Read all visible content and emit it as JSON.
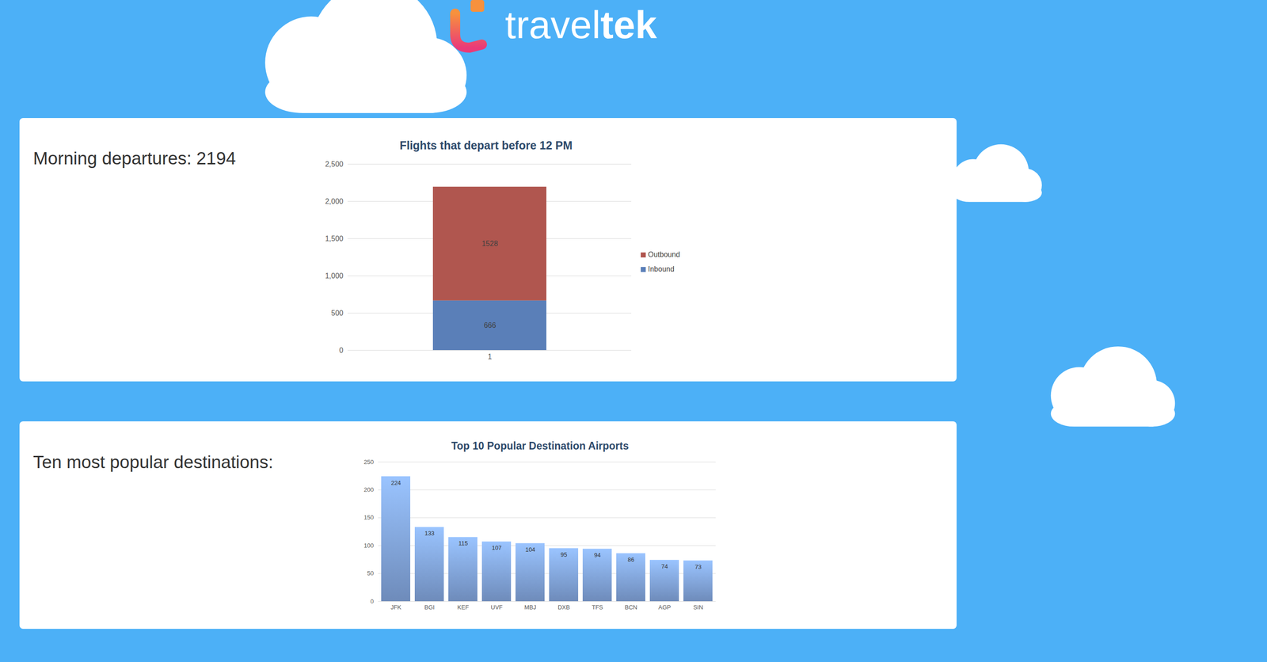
{
  "logo": {
    "text_light": "travel",
    "text_bold": "tek"
  },
  "panels": [
    {
      "label": "Morning departures: 2194"
    },
    {
      "label": "Ten most popular destinations:"
    }
  ],
  "chart_data": [
    {
      "type": "bar",
      "title": "Flights that depart before 12 PM",
      "categories": [
        "1"
      ],
      "series": [
        {
          "name": "Inbound",
          "color": "#5a7fb8",
          "values": [
            666
          ]
        },
        {
          "name": "Outbound",
          "color": "#b0564f",
          "values": [
            1528
          ]
        }
      ],
      "stacked": true,
      "data_labels": true,
      "ylim": [
        0,
        2500
      ],
      "yticks": [
        0,
        500,
        1000,
        1500,
        2000,
        2500
      ],
      "grid": true,
      "legend": "right"
    },
    {
      "type": "bar",
      "title": "Top 10 Popular Destination Airports",
      "categories": [
        "JFK",
        "BGI",
        "KEF",
        "UVF",
        "MBJ",
        "DXB",
        "TFS",
        "BCN",
        "AGP",
        "SIN"
      ],
      "values": [
        224,
        133,
        115,
        107,
        104,
        95,
        94,
        86,
        74,
        73
      ],
      "color": "#8db3ef",
      "ylim": [
        0,
        250
      ],
      "yticks": [
        0,
        50,
        100,
        150,
        200,
        250
      ],
      "grid": true,
      "data_labels": true
    }
  ]
}
